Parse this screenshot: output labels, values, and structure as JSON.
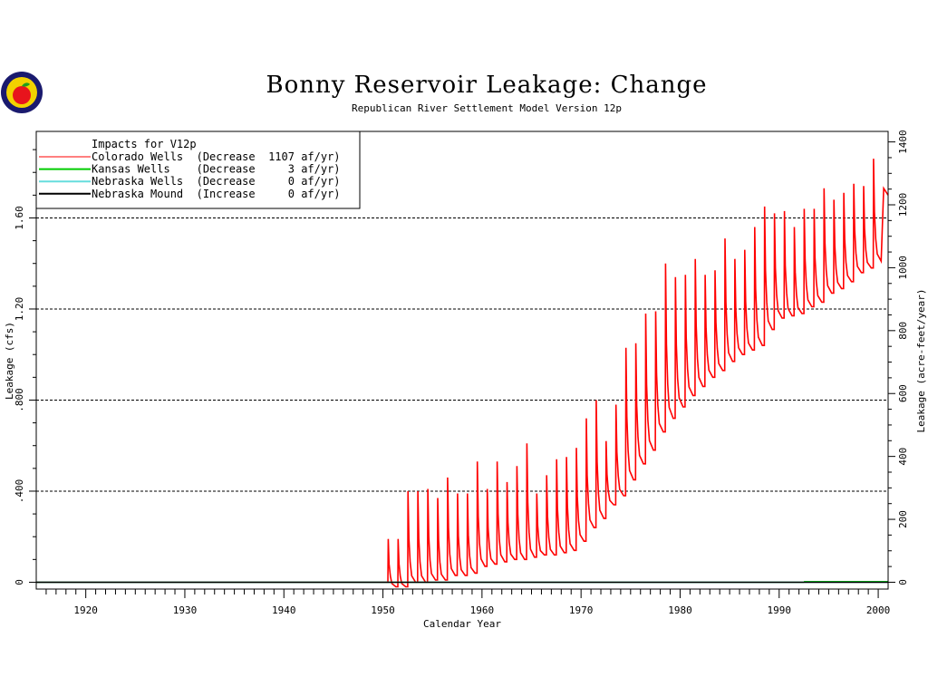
{
  "logo": {
    "icon": "apple-logo-icon"
  },
  "chart_data": {
    "type": "line",
    "title": "Bonny Reservoir Leakage: Change",
    "subtitle": "Republican River Settlement Model Version 12p",
    "xlabel": "Calendar Year",
    "ylabel": "Leakage (cfs)",
    "y2label": "Leakage (acre-feet/year)",
    "xlim": [
      1915,
      2001
    ],
    "ylim": [
      -0.03,
      1.98
    ],
    "y2lim": [
      -21.7,
      1433.4
    ],
    "x_ticks": [
      1920,
      1930,
      1940,
      1950,
      1960,
      1970,
      1980,
      1990,
      2000
    ],
    "y_ticks": [
      0,
      0.4,
      0.8,
      1.2,
      1.6
    ],
    "y_tick_labels": [
      "0",
      ".400",
      ".800",
      "1.20",
      "1.60"
    ],
    "y2_ticks": [
      0,
      200,
      400,
      600,
      800,
      1000,
      1200,
      1400
    ],
    "gridlines_y": [
      0,
      0.4,
      0.8,
      1.2,
      1.6
    ],
    "legend": {
      "position": "top-left",
      "heading": "Impacts for V12p",
      "entries": [
        {
          "text": "Colorado Wells  (Decrease  1107 af/yr)",
          "color": "#ff0000"
        },
        {
          "text": "Kansas Wells    (Decrease     3 af/yr)",
          "color": "#00cc00"
        },
        {
          "text": "Nebraska Wells  (Decrease     0 af/yr)",
          "color": "#66dddd"
        },
        {
          "text": "Nebraska Mound  (Increase     0 af/yr)",
          "color": "#000000"
        }
      ]
    },
    "series": [
      {
        "name": "Colorado Wells",
        "color": "#ff0000",
        "annual": {
          "years": [
            1951,
            1952,
            1953,
            1954,
            1955,
            1956,
            1957,
            1958,
            1959,
            1960,
            1961,
            1962,
            1963,
            1964,
            1965,
            1966,
            1967,
            1968,
            1969,
            1970,
            1971,
            1972,
            1973,
            1974,
            1975,
            1976,
            1977,
            1978,
            1979,
            1980,
            1981,
            1982,
            1983,
            1984,
            1985,
            1986,
            1987,
            1988,
            1989,
            1990,
            1991,
            1992,
            1993,
            1994,
            1995,
            1996,
            1997,
            1998,
            1999,
            2000
          ],
          "peak": [
            0.19,
            0.19,
            0.4,
            0.4,
            0.41,
            0.37,
            0.46,
            0.39,
            0.39,
            0.53,
            0.41,
            0.53,
            0.44,
            0.51,
            0.61,
            0.39,
            0.47,
            0.54,
            0.55,
            0.59,
            0.72,
            0.8,
            0.62,
            0.78,
            1.03,
            1.05,
            1.18,
            1.19,
            1.4,
            1.34,
            1.35,
            1.42,
            1.35,
            1.37,
            1.51,
            1.42,
            1.46,
            1.56,
            1.65,
            1.62,
            1.63,
            1.56,
            1.64,
            1.64,
            1.73,
            1.68,
            1.71,
            1.75,
            1.74,
            1.86
          ],
          "low": [
            -0.02,
            -0.02,
            0.0,
            0.0,
            0.01,
            0.01,
            0.03,
            0.03,
            0.04,
            0.07,
            0.08,
            0.09,
            0.1,
            0.1,
            0.11,
            0.12,
            0.12,
            0.13,
            0.14,
            0.18,
            0.24,
            0.28,
            0.34,
            0.38,
            0.45,
            0.52,
            0.58,
            0.66,
            0.72,
            0.77,
            0.82,
            0.86,
            0.9,
            0.93,
            0.97,
            1.0,
            1.02,
            1.04,
            1.11,
            1.16,
            1.17,
            1.18,
            1.21,
            1.23,
            1.27,
            1.29,
            1.32,
            1.36,
            1.38,
            1.41
          ]
        },
        "end_point": {
          "x": 2001.0,
          "y": 1.73
        }
      },
      {
        "name": "Kansas Wells",
        "color": "#00cc00",
        "start_year": 1992.5,
        "value": 0.003
      },
      {
        "name": "Nebraska Wells",
        "color": "#66dddd",
        "value": 0
      },
      {
        "name": "Nebraska Mound",
        "color": "#000000",
        "value": 0
      }
    ]
  }
}
